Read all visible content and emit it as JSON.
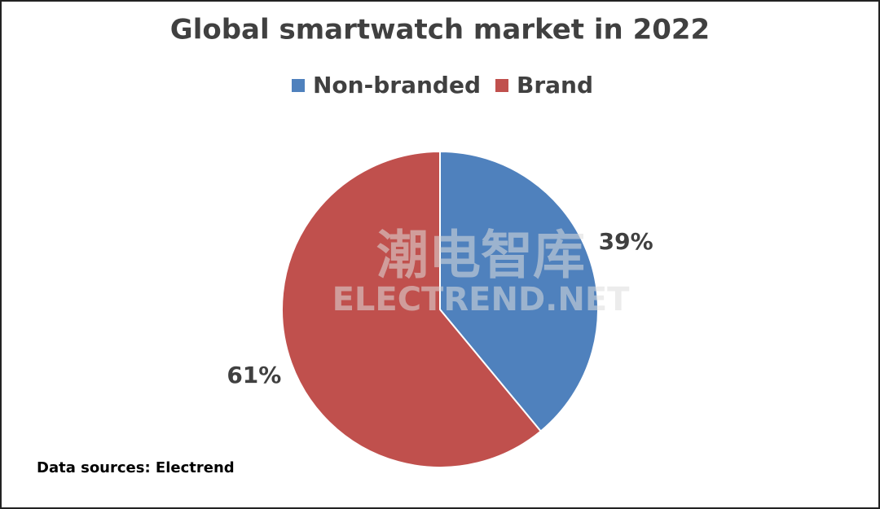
{
  "chart_data": {
    "type": "pie",
    "title": "Global smartwatch market in 2022",
    "categories": [
      "Non-branded",
      "Brand"
    ],
    "values": [
      39,
      61
    ],
    "value_labels": [
      "39%",
      "61%"
    ],
    "colors": [
      "#4f81bd",
      "#c0504d"
    ],
    "source": "Data sources:  Electrend",
    "watermark": [
      "潮电智库",
      "ELECTREND.NET"
    ]
  }
}
